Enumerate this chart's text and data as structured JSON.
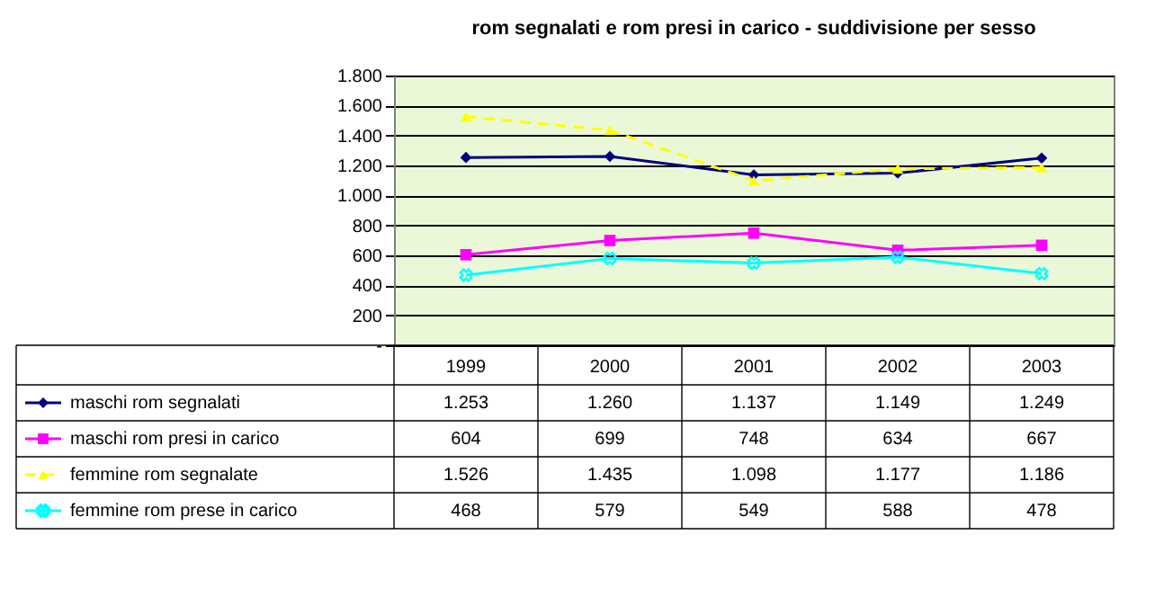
{
  "chart_data": {
    "type": "line",
    "title": "rom segnalati e rom presi in carico - suddivisione per sesso",
    "categories": [
      "1999",
      "2000",
      "2001",
      "2002",
      "2003"
    ],
    "series": [
      {
        "name": "maschi rom segnalati",
        "color": "#000080",
        "marker": "diamond",
        "line_style": "solid",
        "values": [
          1253,
          1260,
          1137,
          1149,
          1249
        ],
        "value_labels": [
          "1.253",
          "1.260",
          "1.137",
          "1.149",
          "1.249"
        ]
      },
      {
        "name": "maschi rom presi in carico",
        "color": "#ff00ff",
        "marker": "square",
        "line_style": "solid",
        "values": [
          604,
          699,
          748,
          634,
          667
        ],
        "value_labels": [
          "604",
          "699",
          "748",
          "634",
          "667"
        ]
      },
      {
        "name": "femmine rom segnalate",
        "color": "#ffff00",
        "marker": "triangle",
        "line_style": "dashed",
        "values": [
          1526,
          1435,
          1098,
          1177,
          1186
        ],
        "value_labels": [
          "1.526",
          "1.435",
          "1.098",
          "1.177",
          "1.186"
        ]
      },
      {
        "name": "femmine rom prese in carico",
        "color": "#00ffff",
        "marker": "cross",
        "line_style": "solid",
        "values": [
          468,
          579,
          549,
          588,
          478
        ],
        "value_labels": [
          "468",
          "579",
          "549",
          "588",
          "478"
        ]
      }
    ],
    "ylim": [
      0,
      1800
    ],
    "yticks": [
      {
        "value": 0,
        "label": "-"
      },
      200,
      400,
      600,
      800,
      {
        "value": 1000,
        "label": "1.000"
      },
      {
        "value": 1200,
        "label": "1.200"
      },
      {
        "value": 1400,
        "label": "1.400"
      },
      {
        "value": 1600,
        "label": "1.600"
      },
      {
        "value": 1800,
        "label": "1.800"
      }
    ],
    "grid": "y",
    "legend": "bottom"
  }
}
